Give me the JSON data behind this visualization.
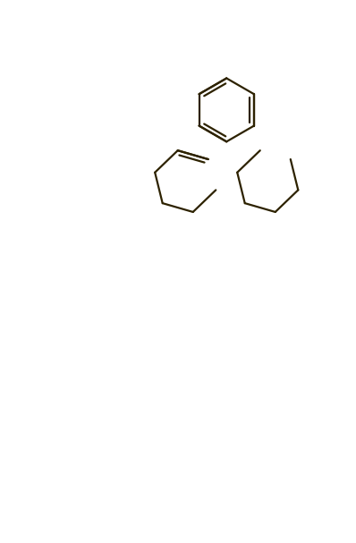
{
  "bg_color": "#ffffff",
  "line_color": "#2d2200",
  "lw": 1.6,
  "figsize": [
    3.98,
    6.07
  ],
  "dpi": 100,
  "bond_color": "#2d2200",
  "label_color": "#1a1a8c",
  "label_color2": "#2d2200"
}
